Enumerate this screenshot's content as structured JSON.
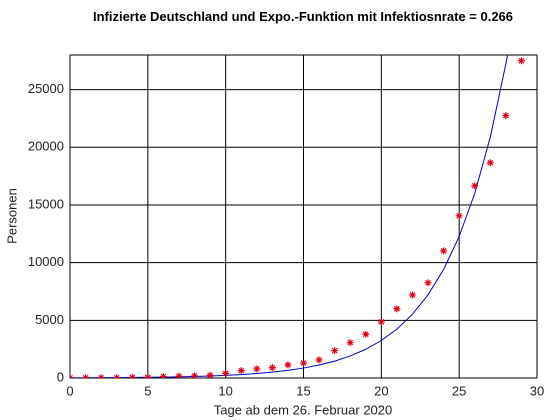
{
  "chart_data": {
    "type": "scatter",
    "title": "Infizierte Deutschland und Expo.-Funktion mit Infektiosnrate = 0.266",
    "xlabel": "Tage ab dem 26. Februar 2020",
    "ylabel": "Personen",
    "xlim": [
      0,
      30
    ],
    "xticks": [
      0,
      5,
      10,
      15,
      20,
      25,
      30
    ],
    "ylim": [
      0,
      28000
    ],
    "yticks": [
      0,
      5000,
      10000,
      15000,
      20000,
      25000
    ],
    "grid": true,
    "series": [
      {
        "color": "#0000c8",
        "style": "line",
        "x": [
          0,
          1,
          2,
          3,
          4,
          5,
          6,
          7,
          8,
          9,
          10,
          11,
          12,
          13,
          14,
          15,
          16,
          17,
          18,
          19,
          20,
          21,
          22,
          23,
          24,
          25,
          26,
          27,
          28,
          28.1
        ],
        "values": [
          16,
          20.9,
          27.2,
          35.5,
          46.3,
          60.4,
          78.8,
          102.7,
          134,
          174.8,
          228,
          297,
          388,
          506,
          660,
          861,
          1123,
          1464,
          1910,
          2491,
          3250,
          4239,
          5529,
          7212,
          9407,
          12270,
          16004,
          20875,
          27229,
          27963
        ]
      },
      {
        "color": "#e0001a",
        "style": "marker",
        "x": [
          0,
          1,
          2,
          3,
          4,
          5,
          6,
          7,
          8,
          9,
          10,
          11,
          12,
          13,
          14,
          15,
          16,
          17,
          18,
          19,
          20,
          21,
          22,
          23,
          24,
          25,
          26,
          27,
          28,
          29
        ],
        "values": [
          16,
          18,
          21,
          26,
          53,
          66,
          117,
          150,
          188,
          240,
          400,
          639,
          795,
          902,
          1139,
          1296,
          1567,
          2369,
          3062,
          3795,
          4860,
          5990,
          7200,
          8250,
          11020,
          14060,
          16670,
          18660,
          22740,
          27500
        ]
      }
    ]
  }
}
